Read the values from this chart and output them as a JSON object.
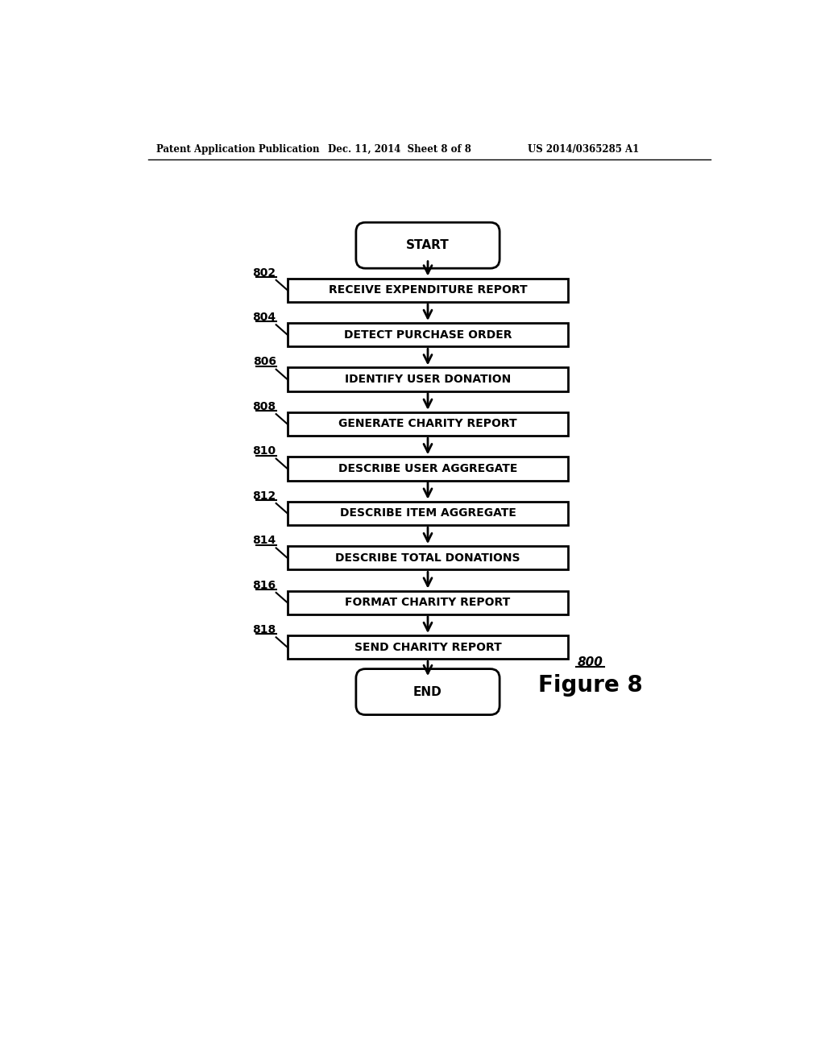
{
  "title_header": "Patent Application Publication",
  "date_header": "Dec. 11, 2014  Sheet 8 of 8",
  "patent_header": "US 2014/0365285 A1",
  "figure_label": "Figure 8",
  "figure_number": "800",
  "start_label": "START",
  "end_label": "END",
  "boxes": [
    {
      "label": "RECEIVE EXPENDITURE REPORT",
      "ref": "802"
    },
    {
      "label": "DETECT PURCHASE ORDER",
      "ref": "804"
    },
    {
      "label": "IDENTIFY USER DONATION",
      "ref": "806"
    },
    {
      "label": "GENERATE CHARITY REPORT",
      "ref": "808"
    },
    {
      "label": "DESCRIBE USER AGGREGATE",
      "ref": "810"
    },
    {
      "label": "DESCRIBE ITEM AGGREGATE",
      "ref": "812"
    },
    {
      "label": "DESCRIBE TOTAL DONATIONS",
      "ref": "814"
    },
    {
      "label": "FORMAT CHARITY REPORT",
      "ref": "816"
    },
    {
      "label": "SEND CHARITY REPORT",
      "ref": "818"
    }
  ],
  "bg_color": "#ffffff",
  "box_color": "#ffffff",
  "box_edge_color": "#000000",
  "text_color": "#000000",
  "arrow_color": "#000000"
}
